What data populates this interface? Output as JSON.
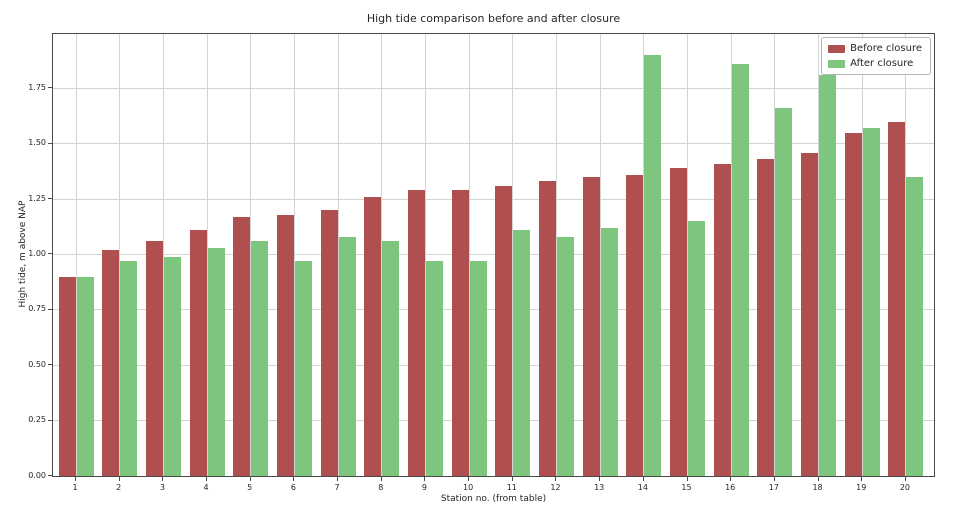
{
  "chart_data": {
    "type": "bar",
    "title": "High tide comparison before and after closure",
    "xlabel": "Station no. (from table)",
    "ylabel": "High tide, m above NAP",
    "categories": [
      "1",
      "2",
      "3",
      "4",
      "5",
      "6",
      "7",
      "8",
      "9",
      "10",
      "11",
      "12",
      "13",
      "14",
      "15",
      "16",
      "17",
      "18",
      "19",
      "20"
    ],
    "series": [
      {
        "name": "Before closure",
        "color": "#b04f4f",
        "values": [
          0.9,
          1.02,
          1.06,
          1.11,
          1.17,
          1.18,
          1.2,
          1.26,
          1.29,
          1.29,
          1.31,
          1.33,
          1.35,
          1.36,
          1.39,
          1.41,
          1.43,
          1.46,
          1.55,
          1.6
        ]
      },
      {
        "name": "After closure",
        "color": "#7ec57e",
        "values": [
          0.9,
          0.97,
          0.99,
          1.03,
          1.06,
          0.97,
          1.08,
          1.06,
          0.97,
          0.97,
          1.11,
          1.08,
          1.12,
          1.9,
          1.15,
          1.86,
          1.66,
          1.81,
          1.57,
          1.35
        ]
      }
    ],
    "ylim": [
      0,
      1.995
    ],
    "ytick_values": [
      0,
      0.25,
      0.5,
      0.75,
      1.0,
      1.25,
      1.5,
      1.75
    ],
    "ytick_labels": [
      "0.00",
      "0.25",
      "0.50",
      "0.75",
      "1.00",
      "1.25",
      "1.50",
      "1.75"
    ],
    "grid": true,
    "legend_position": "upper right",
    "background_color": "#ffffff",
    "grid_color": "#d4d4d4"
  }
}
